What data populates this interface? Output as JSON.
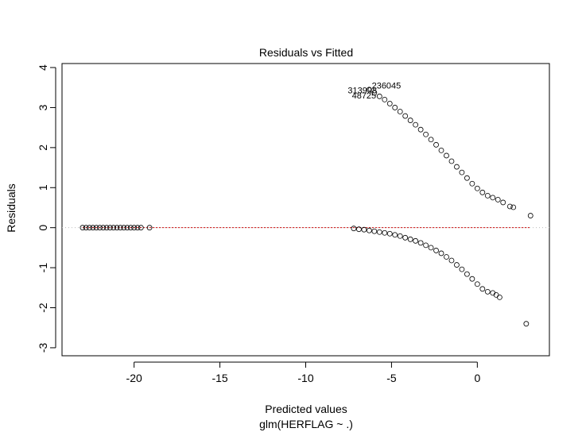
{
  "chart_data": {
    "type": "scatter",
    "title": "Residuals vs Fitted",
    "xlabel": "Predicted values",
    "subtitle": "glm(HERFLAG ~ .)",
    "ylabel": "Residuals",
    "xlim": [
      -24.2,
      4.2
    ],
    "ylim": [
      -3.2,
      4.1
    ],
    "xticks": [
      -20,
      -15,
      -10,
      -5,
      0
    ],
    "yticks": [
      -3,
      -2,
      -1,
      0,
      1,
      2,
      3,
      4
    ],
    "grid": false,
    "reference_line": {
      "y": 0,
      "color": "#bbbbbb",
      "style": "dotted"
    },
    "smooth_line": {
      "y": 0,
      "color": "#cc0000",
      "style": "dashed"
    },
    "point_labels": [
      {
        "text": "236045",
        "x": -5.3,
        "y": 3.55
      },
      {
        "text": "313998",
        "x": -6.7,
        "y": 3.43
      },
      {
        "text": "48725",
        "x": -6.6,
        "y": 3.3
      }
    ],
    "series": [
      {
        "marker": "open-circle",
        "x": [
          -23.0,
          -22.8,
          -22.6,
          -22.4,
          -22.2,
          -22.0,
          -21.8,
          -21.6,
          -21.4,
          -21.2,
          -21.0,
          -20.8,
          -20.6,
          -20.4,
          -20.2,
          -20.0,
          -19.8,
          -19.6,
          -19.1,
          -7.2,
          -6.9,
          -6.6,
          -6.3,
          -6.0,
          -5.7,
          -5.4,
          -5.1,
          -4.8,
          -4.5,
          -4.2,
          -3.9,
          -3.6,
          -3.3,
          -3.0,
          -2.7,
          -2.4,
          -2.1,
          -1.8,
          -1.5,
          -1.2,
          -0.9,
          -0.6,
          -0.3,
          0.0,
          0.3,
          0.6,
          0.9,
          1.1,
          1.3,
          2.85,
          -6.3,
          -6.0,
          -5.7,
          -5.4,
          -5.1,
          -4.8,
          -4.5,
          -4.2,
          -3.9,
          -3.6,
          -3.3,
          -3.0,
          -2.7,
          -2.4,
          -2.1,
          -1.8,
          -1.5,
          -1.2,
          -0.9,
          -0.6,
          -0.3,
          0.0,
          0.3,
          0.6,
          0.9,
          1.2,
          1.5,
          1.9,
          2.1,
          3.1
        ],
        "y": [
          0,
          0,
          0,
          0,
          0,
          0,
          0,
          0,
          0,
          0,
          0,
          0,
          0,
          0,
          0,
          0,
          0,
          0,
          0,
          -0.02,
          -0.04,
          -0.05,
          -0.07,
          -0.09,
          -0.11,
          -0.13,
          -0.15,
          -0.18,
          -0.21,
          -0.25,
          -0.29,
          -0.33,
          -0.38,
          -0.44,
          -0.5,
          -0.57,
          -0.64,
          -0.73,
          -0.82,
          -0.93,
          -1.04,
          -1.16,
          -1.28,
          -1.41,
          -1.53,
          -1.6,
          -1.63,
          -1.68,
          -1.74,
          -2.4,
          3.45,
          3.37,
          3.28,
          3.2,
          3.1,
          3.0,
          2.9,
          2.79,
          2.68,
          2.57,
          2.45,
          2.33,
          2.2,
          2.07,
          1.93,
          1.8,
          1.66,
          1.52,
          1.38,
          1.24,
          1.1,
          0.98,
          0.88,
          0.8,
          0.75,
          0.7,
          0.63,
          0.53,
          0.51,
          0.3
        ]
      }
    ]
  }
}
